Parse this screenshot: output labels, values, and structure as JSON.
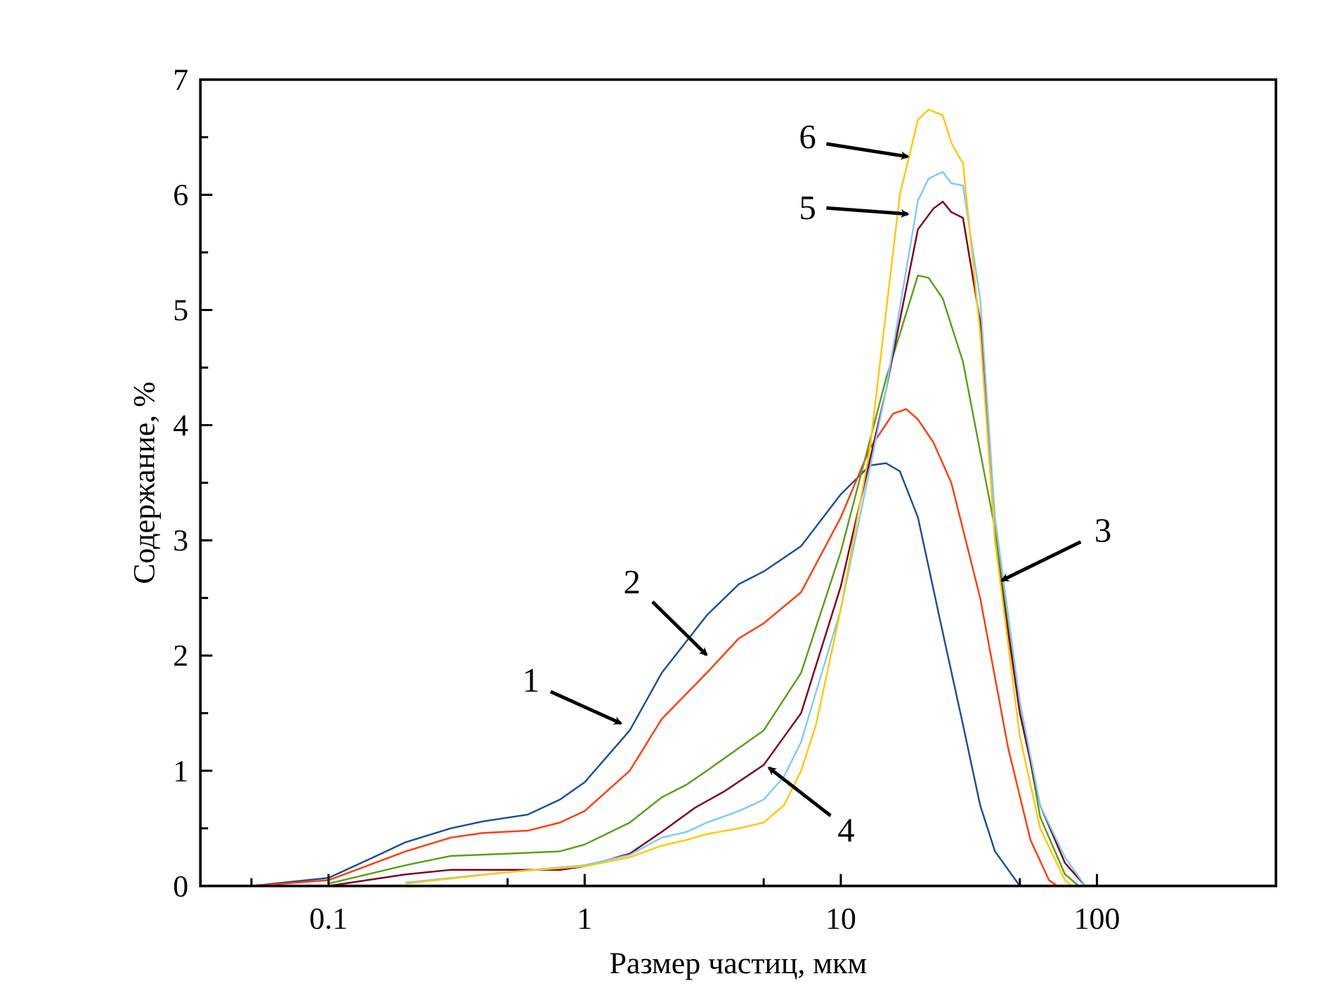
{
  "chart_data": {
    "type": "line",
    "title": "",
    "xlabel": "Размер частиц, мкм",
    "ylabel": "Содержание, %",
    "xscale": "log",
    "xlim": [
      0.0316,
      500
    ],
    "ylim": [
      0,
      7
    ],
    "x_ticks": [
      0.1,
      1,
      10,
      100
    ],
    "x_tick_labels": [
      "0.1",
      "1",
      "10",
      "100"
    ],
    "x_minor_ticks": [
      0.05,
      0.5,
      5,
      50
    ],
    "y_ticks": [
      0,
      1,
      2,
      3,
      4,
      5,
      6,
      7
    ],
    "y_tick_labels": [
      "0",
      "1",
      "2",
      "3",
      "4",
      "5",
      "6",
      "7"
    ],
    "y_minor_ticks": [
      0.5,
      1.5,
      2.5,
      3.5,
      4.5,
      5.5,
      6.5
    ],
    "grid": false,
    "legend": "none",
    "series": [
      {
        "name": "1",
        "color": "#1b4f91",
        "x": [
          0.05,
          0.1,
          0.15,
          0.2,
          0.3,
          0.4,
          0.6,
          0.8,
          1,
          1.5,
          2,
          3,
          4,
          5,
          7,
          10,
          13,
          15,
          17,
          20,
          25,
          30,
          35,
          40,
          50
        ],
        "y": [
          0,
          0.07,
          0.25,
          0.38,
          0.5,
          0.56,
          0.62,
          0.75,
          0.9,
          1.35,
          1.85,
          2.35,
          2.62,
          2.73,
          2.95,
          3.4,
          3.65,
          3.67,
          3.6,
          3.2,
          2.2,
          1.4,
          0.7,
          0.3,
          0
        ]
      },
      {
        "name": "2",
        "color": "#ff3d0f",
        "x": [
          0.05,
          0.1,
          0.2,
          0.3,
          0.4,
          0.6,
          0.8,
          1,
          1.5,
          2,
          3,
          4,
          5,
          7,
          10,
          13,
          16,
          18,
          20,
          23,
          27,
          35,
          45,
          55,
          65,
          70
        ],
        "y": [
          0,
          0.05,
          0.3,
          0.42,
          0.46,
          0.48,
          0.55,
          0.65,
          1.0,
          1.45,
          1.85,
          2.15,
          2.28,
          2.55,
          3.2,
          3.8,
          4.1,
          4.14,
          4.05,
          3.85,
          3.5,
          2.5,
          1.2,
          0.4,
          0.05,
          0
        ]
      },
      {
        "name": "3",
        "color": "#5a9e1a",
        "x": [
          0.1,
          0.2,
          0.3,
          0.5,
          0.8,
          1,
          1.5,
          2,
          2.5,
          3,
          5,
          7,
          10,
          15,
          20,
          22,
          25,
          30,
          40,
          50,
          60,
          75,
          85
        ],
        "y": [
          0.02,
          0.18,
          0.26,
          0.28,
          0.3,
          0.36,
          0.55,
          0.77,
          0.88,
          1.0,
          1.35,
          1.85,
          2.9,
          4.4,
          5.3,
          5.28,
          5.1,
          4.55,
          3.1,
          1.6,
          0.6,
          0.1,
          0
        ]
      },
      {
        "name": "4",
        "color": "#7a0020",
        "x": [
          0.1,
          0.2,
          0.3,
          0.5,
          0.8,
          1,
          1.5,
          2,
          2.7,
          3.5,
          5,
          7,
          10,
          15,
          20,
          23,
          25,
          27,
          30,
          35,
          40,
          50,
          60,
          75,
          90
        ],
        "y": [
          0,
          0.1,
          0.14,
          0.14,
          0.14,
          0.17,
          0.28,
          0.47,
          0.68,
          0.82,
          1.05,
          1.5,
          2.6,
          4.3,
          5.7,
          5.88,
          5.94,
          5.85,
          5.8,
          4.9,
          3.0,
          1.5,
          0.7,
          0.2,
          0
        ]
      },
      {
        "name": "5",
        "color": "#80c8ff",
        "x": [
          0.2,
          0.5,
          1,
          1.5,
          2,
          2.5,
          3,
          4,
          5,
          6,
          7,
          10,
          15,
          20,
          22,
          25,
          27,
          30,
          35,
          40,
          50,
          60,
          75,
          90
        ],
        "y": [
          0.03,
          0.12,
          0.18,
          0.27,
          0.42,
          0.47,
          0.55,
          0.65,
          0.75,
          0.95,
          1.25,
          2.4,
          4.3,
          5.95,
          6.14,
          6.2,
          6.1,
          6.08,
          5.1,
          3.2,
          1.6,
          0.7,
          0.25,
          0
        ]
      },
      {
        "name": "6",
        "color": "#ffc800",
        "x": [
          0.2,
          0.5,
          1,
          1.5,
          2,
          2.5,
          3,
          4,
          5,
          6,
          7,
          8,
          10,
          13,
          17,
          20,
          22,
          25,
          27,
          30,
          35,
          40,
          50,
          60,
          75,
          80
        ],
        "y": [
          0.02,
          0.12,
          0.17,
          0.25,
          0.35,
          0.4,
          0.45,
          0.5,
          0.55,
          0.7,
          1.0,
          1.4,
          2.4,
          3.8,
          6.0,
          6.65,
          6.74,
          6.69,
          6.45,
          6.27,
          4.8,
          3.0,
          1.3,
          0.5,
          0.05,
          0
        ]
      }
    ],
    "annotations": [
      {
        "text": "1",
        "target_series": "1"
      },
      {
        "text": "2",
        "target_series": "2"
      },
      {
        "text": "3",
        "target_series": "3"
      },
      {
        "text": "4",
        "target_series": "4"
      },
      {
        "text": "5",
        "target_series": "5"
      },
      {
        "text": "6",
        "target_series": "6"
      }
    ]
  }
}
